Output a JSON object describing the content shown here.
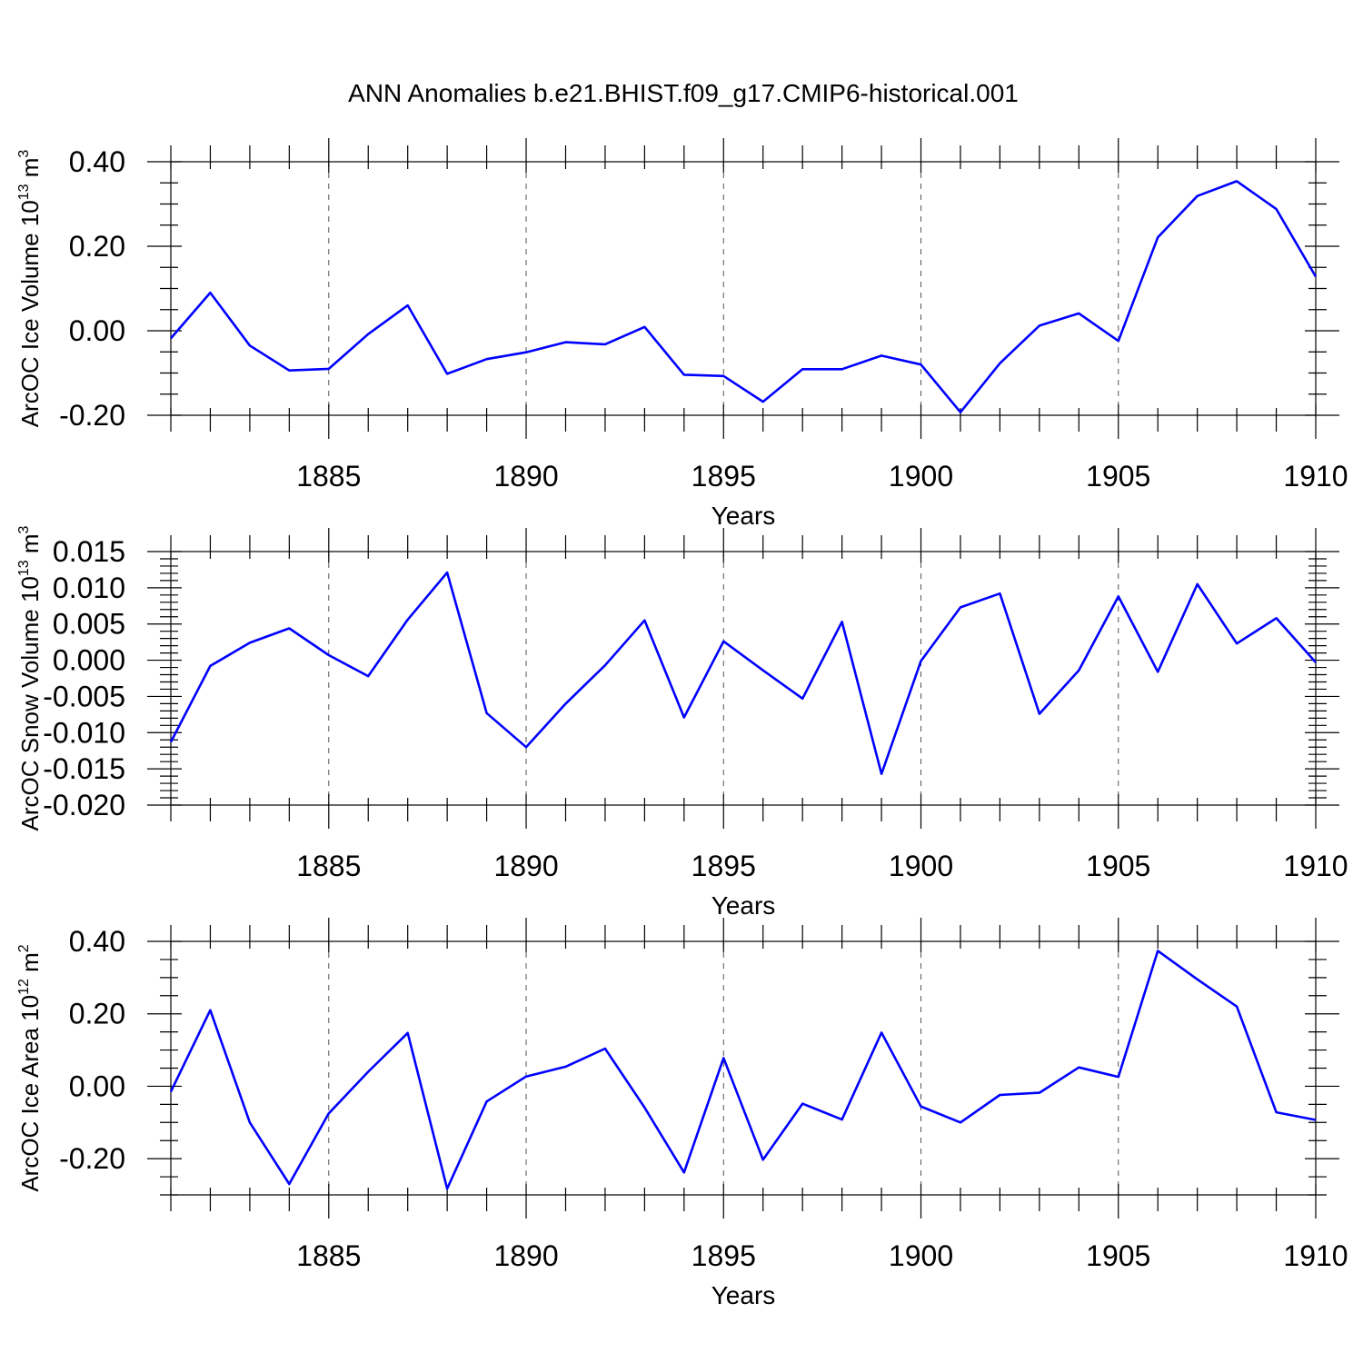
{
  "chart_data": [
    {
      "type": "line",
      "title": "ANN Anomalies b.e21.BHIST.f09_g17.CMIP6-historical.001",
      "xlabel": "Years",
      "ylabel": {
        "pre": "ArcOC Ice Volume 10",
        "exp": "13",
        "mid": " m",
        "unit_exp": "3"
      },
      "xlim": [
        1881,
        1910
      ],
      "ylim": [
        -0.2,
        0.4
      ],
      "x_ticks": [
        1885,
        1890,
        1895,
        1900,
        1905,
        1910
      ],
      "y_ticks": [
        -0.2,
        0.0,
        0.2,
        0.4
      ],
      "y_tick_labels": [
        "-0.20",
        "0.00",
        "0.20",
        "0.40"
      ],
      "y_minor_step": 0.05,
      "grid": "dashed vertical at major x ticks",
      "series": [
        {
          "name": "ArcOC Ice Volume",
          "color": "#0000ff",
          "x": [
            1881,
            1882,
            1883,
            1884,
            1885,
            1886,
            1887,
            1888,
            1889,
            1890,
            1891,
            1892,
            1893,
            1894,
            1895,
            1896,
            1897,
            1898,
            1899,
            1900,
            1901,
            1902,
            1903,
            1904,
            1905,
            1906,
            1907,
            1908,
            1909,
            1910
          ],
          "values": [
            -0.018,
            0.09,
            -0.035,
            -0.094,
            -0.09,
            -0.008,
            0.06,
            -0.102,
            -0.067,
            -0.051,
            -0.027,
            -0.032,
            0.009,
            -0.104,
            -0.107,
            -0.168,
            -0.091,
            -0.091,
            -0.059,
            -0.08,
            -0.193,
            -0.077,
            0.012,
            0.041,
            -0.024,
            0.221,
            0.319,
            0.354,
            0.288,
            0.128
          ]
        }
      ]
    },
    {
      "type": "line",
      "xlabel": "Years",
      "ylabel": {
        "pre": "ArcOC Snow Volume 10",
        "exp": "13",
        "mid": " m",
        "unit_exp": "3"
      },
      "xlim": [
        1881,
        1910
      ],
      "ylim": [
        -0.02,
        0.015
      ],
      "x_ticks": [
        1885,
        1890,
        1895,
        1900,
        1905,
        1910
      ],
      "y_ticks": [
        -0.02,
        -0.015,
        -0.01,
        -0.005,
        0.0,
        0.005,
        0.01,
        0.015
      ],
      "y_tick_labels": [
        "-0.020",
        "-0.015",
        "-0.010",
        "-0.005",
        "0.000",
        "0.005",
        "0.010",
        "0.015"
      ],
      "y_minor_step": 0.001,
      "grid": "dashed vertical at major x ticks",
      "series": [
        {
          "name": "ArcOC Snow Volume",
          "color": "#0000ff",
          "x": [
            1881,
            1882,
            1883,
            1884,
            1885,
            1886,
            1887,
            1888,
            1889,
            1890,
            1891,
            1892,
            1893,
            1894,
            1895,
            1896,
            1897,
            1898,
            1899,
            1900,
            1901,
            1902,
            1903,
            1904,
            1905,
            1906,
            1907,
            1908,
            1909,
            1910
          ],
          "values": [
            -0.0113,
            -0.0008,
            0.0024,
            0.0044,
            0.0007,
            -0.0022,
            0.0056,
            0.0121,
            -0.0073,
            -0.012,
            -0.006,
            -0.0007,
            0.0055,
            -0.0079,
            0.0026,
            -0.0014,
            -0.0053,
            0.0053,
            -0.0157,
            -0.0001,
            0.0073,
            0.0092,
            -0.0074,
            -0.0014,
            0.0088,
            -0.0016,
            0.0105,
            0.0023,
            0.0058,
            -0.0003
          ]
        }
      ]
    },
    {
      "type": "line",
      "xlabel": "Years",
      "ylabel": {
        "pre": "ArcOC Ice Area 10",
        "exp": "12",
        "mid": " m",
        "unit_exp": "2"
      },
      "xlim": [
        1881,
        1910
      ],
      "ylim": [
        -0.3,
        0.4
      ],
      "x_ticks": [
        1885,
        1890,
        1895,
        1900,
        1905,
        1910
      ],
      "y_ticks": [
        -0.2,
        0.0,
        0.2,
        0.4
      ],
      "y_tick_labels": [
        "-0.20",
        "0.00",
        "0.20",
        "0.40"
      ],
      "y_minor_step": 0.05,
      "grid": "dashed vertical at major x ticks",
      "series": [
        {
          "name": "ArcOC Ice Area",
          "color": "#0000ff",
          "x": [
            1881,
            1882,
            1883,
            1884,
            1885,
            1886,
            1887,
            1888,
            1889,
            1890,
            1891,
            1892,
            1893,
            1894,
            1895,
            1896,
            1897,
            1898,
            1899,
            1900,
            1901,
            1902,
            1903,
            1904,
            1905,
            1906,
            1907,
            1908,
            1909,
            1910
          ],
          "values": [
            -0.015,
            0.21,
            -0.1,
            -0.27,
            -0.075,
            0.04,
            0.147,
            -0.283,
            -0.042,
            0.027,
            0.054,
            0.104,
            -0.059,
            -0.238,
            0.078,
            -0.203,
            -0.048,
            -0.092,
            0.148,
            -0.056,
            -0.1,
            -0.024,
            -0.018,
            0.052,
            0.026,
            0.374,
            0.295,
            0.22,
            -0.072,
            -0.093
          ]
        }
      ]
    }
  ]
}
